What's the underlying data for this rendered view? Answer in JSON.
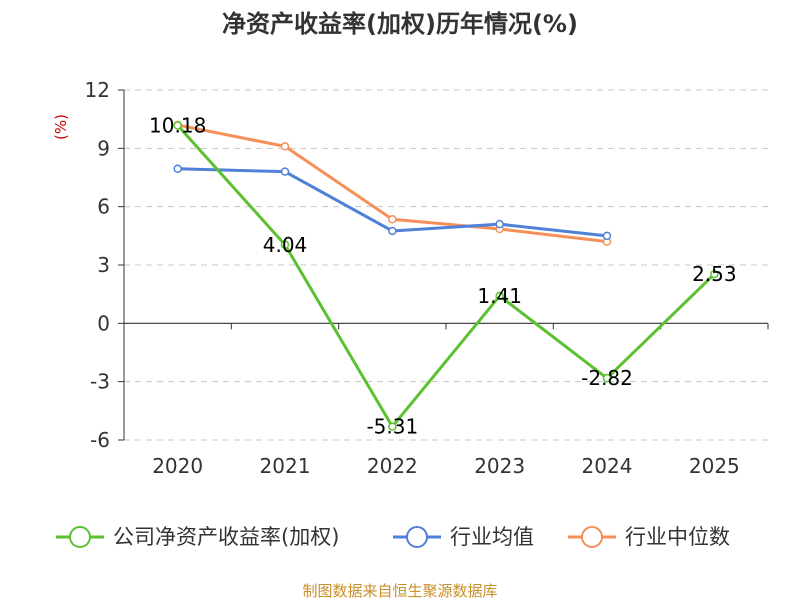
{
  "chart_data": {
    "type": "line",
    "title": "净资产收益率(加权)历年情况(%)",
    "unit_label": "(%)",
    "categories": [
      "2020",
      "2021",
      "2022",
      "2023",
      "2024",
      "2025"
    ],
    "ylim": [
      -6,
      12
    ],
    "yticks": [
      12,
      9,
      6,
      3,
      0,
      -3,
      -6
    ],
    "grid": true,
    "legend_position": "bottom",
    "series": [
      {
        "name": "公司净资产收益率(加权)",
        "color": "#5cc130",
        "values": [
          10.18,
          4.04,
          -5.31,
          1.41,
          -2.82,
          2.53
        ],
        "labels": [
          "10.18",
          "4.04",
          "-5.31",
          "1.41",
          "-2.82",
          "2.53"
        ]
      },
      {
        "name": "行业均值",
        "color": "#5080d8",
        "values": [
          7.95,
          7.8,
          4.75,
          5.1,
          4.5,
          null
        ]
      },
      {
        "name": "行业中位数",
        "color": "#f5905a",
        "values": [
          10.2,
          9.1,
          5.35,
          4.85,
          4.2,
          null
        ]
      }
    ]
  },
  "source": "制图数据来自恒生聚源数据库"
}
